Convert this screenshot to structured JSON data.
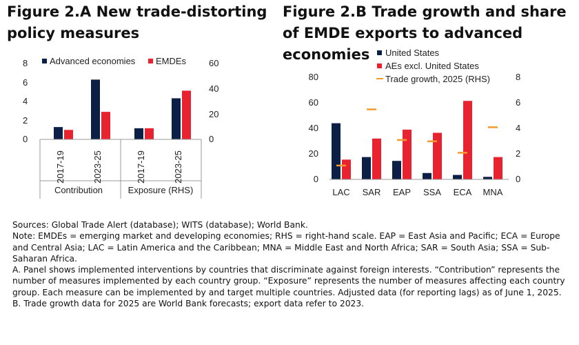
{
  "panel_a_title": "Figure 2.A New trade-distorting policy measures",
  "panel_b_title": "Figure 2.B Trade growth and share of EMDE exports to advanced economies",
  "colors": {
    "navy": "#0c1f45",
    "red": "#e8222e",
    "orange": "#f59a2d",
    "axis": "#999999"
  },
  "chart_data": [
    {
      "type": "bar",
      "title": "Figure 2.A New trade-distorting policy measures",
      "categories": [
        "2017-19",
        "2023-25",
        "2017-19",
        "2023-25"
      ],
      "groups": [
        "Contribution",
        "Exposure (RHS)"
      ],
      "series": [
        {
          "name": "Advanced economies",
          "values": [
            1.3,
            6.3,
            8.8,
            32.5
          ]
        },
        {
          "name": "EMDEs",
          "values": [
            1.0,
            2.9,
            8.8,
            38.5
          ]
        }
      ],
      "value_axis_note": "Contribution values on left axis (0-8); Exposure values on right axis (0-60)",
      "ylim": [
        0,
        8
      ],
      "yticks": [
        "0",
        "2",
        "4",
        "6",
        "8"
      ],
      "y2lim": [
        0,
        60
      ],
      "y2ticks": [
        "0",
        "20",
        "40",
        "60"
      ]
    },
    {
      "type": "bar",
      "title": "Figure 2.B Trade growth and share of EMDE exports to advanced economies",
      "categories": [
        "LAC",
        "SAR",
        "EAP",
        "SSA",
        "ECA",
        "MNA"
      ],
      "series": [
        {
          "name": "United States",
          "values": [
            44,
            17.5,
            14.5,
            5,
            3.5,
            2
          ]
        },
        {
          "name": "AEs excl. United States",
          "values": [
            15.5,
            32,
            39,
            36.5,
            61.5,
            17.5
          ]
        },
        {
          "name": "Trade growth, 2025 (RHS)",
          "values": [
            1.1,
            5.5,
            3.1,
            3.0,
            2.1,
            4.1
          ]
        }
      ],
      "ylim": [
        0,
        80
      ],
      "yticks": [
        "0",
        "20",
        "40",
        "60",
        "80"
      ],
      "y2lim": [
        0,
        8
      ],
      "y2ticks": [
        "0",
        "2",
        "4",
        "6",
        "8"
      ]
    }
  ],
  "notes": [
    "Sources: Global Trade Alert (database); WITS (database); World Bank.",
    "Note: EMDEs = emerging market and developing economies; RHS = right-hand scale. EAP = East Asia and Pacific; ECA = Europe and Central Asia; LAC = Latin America and the Caribbean; MNA = Middle East and North Africa; SAR = South Asia; SSA = Sub-Saharan Africa.",
    "A. Panel shows implemented interventions by countries that discriminate against foreign interests. “Contribution” represents the number of measures implemented by each country group. “Exposure” represents the number of measures affecting each country group. Each measure can be implemented by and target multiple countries. Adjusted data (for reporting lags) as of June 1, 2025.",
    "B. Trade growth data for 2025 are World Bank forecasts; export data refer to 2023."
  ]
}
